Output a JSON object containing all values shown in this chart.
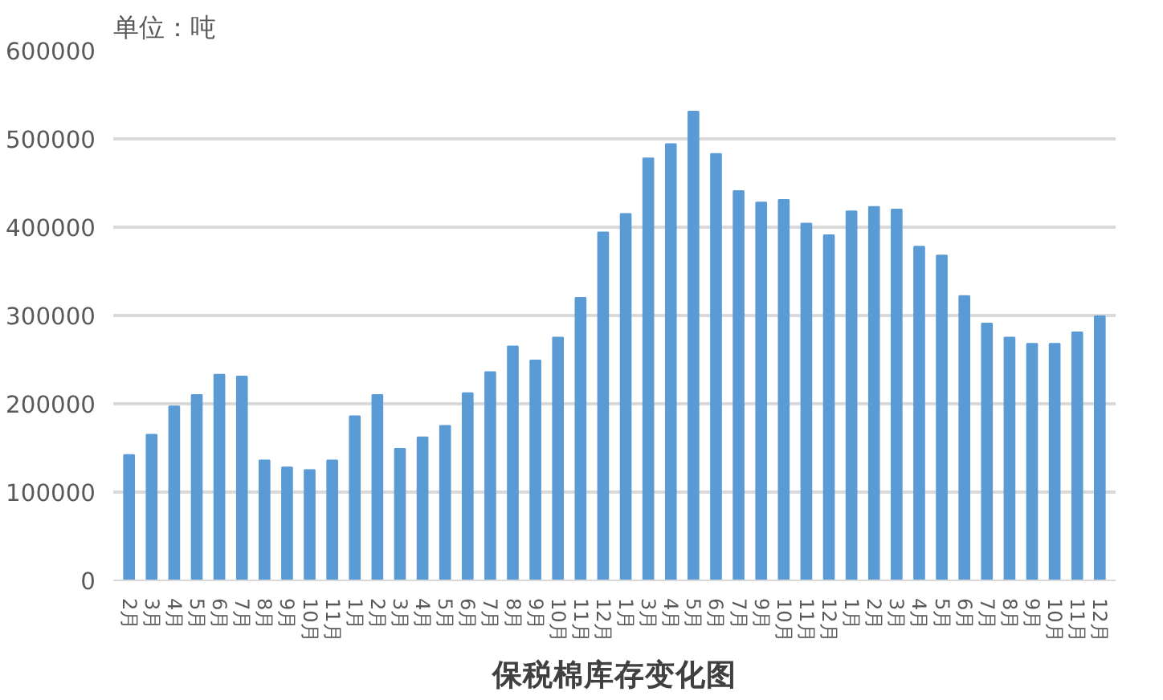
{
  "chart_data": {
    "type": "bar",
    "title": "保税棉库存变化图",
    "annotations": [
      "单位：吨"
    ],
    "categories": [
      "2月",
      "3月",
      "4月",
      "5月",
      "6月",
      "7月",
      "8月",
      "9月",
      "10月",
      "11月",
      "1月",
      "2月",
      "3月",
      "4月",
      "5月",
      "6月",
      "7月",
      "8月",
      "9月",
      "10月",
      "11月",
      "12月",
      "1月",
      "3月",
      "4月",
      "5月",
      "6月",
      "7月",
      "9月",
      "10月",
      "11月",
      "12月",
      "1月",
      "2月",
      "3月",
      "4月",
      "5月",
      "6月",
      "7月",
      "8月",
      "9月",
      "10月",
      "11月",
      "12月"
    ],
    "values": [
      142000,
      165000,
      197000,
      210000,
      233000,
      231000,
      136000,
      128000,
      125000,
      136000,
      186000,
      210000,
      149000,
      162000,
      175000,
      212000,
      236000,
      265000,
      249000,
      275000,
      320000,
      394000,
      415000,
      478000,
      494000,
      531000,
      483000,
      441000,
      428000,
      431000,
      404000,
      391000,
      418000,
      423000,
      420000,
      378000,
      368000,
      322000,
      291000,
      275000,
      268000,
      268000,
      281000,
      299000
    ],
    "color": "#5b9bd5",
    "ylim": [
      0,
      600000
    ],
    "yticks": [
      0,
      100000,
      200000,
      300000,
      400000,
      500000,
      600000
    ],
    "grid": "y"
  }
}
